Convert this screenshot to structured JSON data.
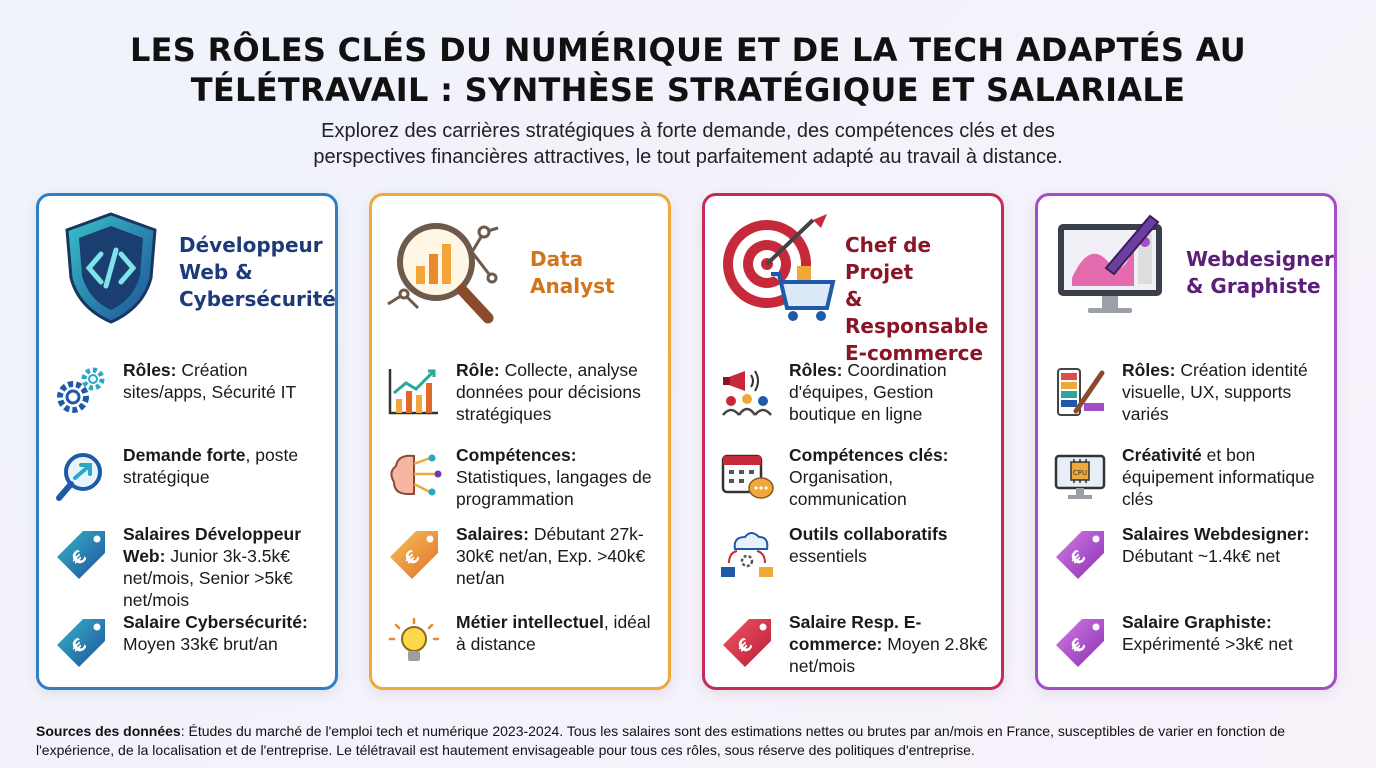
{
  "header": {
    "title_line1": "LES RÔLES CLÉS DU NUMÉRIQUE ET DE LA TECH ADAPTÉS AU",
    "title_line2": "TÉLÉTRAVAIL : SYNTHÈSE STRATÉGIQUE ET SALARIALE",
    "subtitle_line1": "Explorez des carrières stratégiques à forte demande, des compétences clés et des",
    "subtitle_line2": "perspectives financières attractives, le tout parfaitement adapté au travail à distance."
  },
  "colors": {
    "card1": "#2d7fc8",
    "card2": "#f0a83a",
    "card3": "#c62a55",
    "card4": "#a34dc9",
    "title1": "#1e3a78",
    "title2": "#d0751c",
    "title3": "#8a1526",
    "title4": "#5b1f7a"
  },
  "cards": [
    {
      "title": [
        "Développeur",
        "Web &",
        "Cybersécurité"
      ],
      "head_icon": "shield-code-icon",
      "items": [
        {
          "icon": "gears-icon",
          "bold": "Rôles:",
          "rest": " Création sites/apps, Sécurité IT"
        },
        {
          "icon": "magnifier-growth-icon",
          "bold": "Demande forte",
          "rest": ", poste stratégique"
        },
        {
          "icon": "euro-tag-icon",
          "bold": "Salaires Développeur Web:",
          "rest": " Junior 3k-3.5k€ net/mois, Senior >5k€ net/mois"
        },
        {
          "icon": "euro-tag-icon",
          "bold": "Salaire Cybersécurité:",
          "rest": " Moyen 33k€ brut/an"
        }
      ]
    },
    {
      "title": [
        "Data",
        "Analyst"
      ],
      "head_icon": "magnifier-chart-icon",
      "items": [
        {
          "icon": "bar-chart-icon",
          "bold": "Rôle:",
          "rest": " Collecte, analyse données pour décisions stratégiques"
        },
        {
          "icon": "brain-circuit-icon",
          "bold": "Compétences:",
          "rest": " Statistiques, langages de programmation"
        },
        {
          "icon": "euro-tag-icon",
          "bold": "Salaires:",
          "rest": " Débutant 27k-30k€ net/an, Exp. >40k€ net/an"
        },
        {
          "icon": "lightbulb-icon",
          "bold": "Métier intellectuel",
          "rest": ", idéal à distance"
        }
      ]
    },
    {
      "title": [
        "Chef de Projet",
        "& Responsable",
        "E-commerce"
      ],
      "head_icon": "target-cart-icon",
      "items": [
        {
          "icon": "megaphone-team-icon",
          "bold": "Rôles:",
          "rest": " Coordination d'équipes, Gestion boutique en ligne"
        },
        {
          "icon": "calendar-chat-icon",
          "bold": "Compétences clés:",
          "rest": " Organisation, communication"
        },
        {
          "icon": "cloud-collab-icon",
          "bold": "Outils collaboratifs",
          "rest": " essentiels"
        },
        {
          "icon": "euro-tag-icon",
          "bold": "Salaire Resp. E-commerce:",
          "rest": " Moyen 2.8k€ net/mois"
        }
      ]
    },
    {
      "title": [
        "Webdesigner",
        "& Graphiste"
      ],
      "head_icon": "monitor-pen-icon",
      "items": [
        {
          "icon": "palette-brush-icon",
          "bold": "Rôles:",
          "rest": " Création identité visuelle, UX, supports variés"
        },
        {
          "icon": "monitor-cpu-icon",
          "bold": "Créativité",
          "rest": " et bon équipement informatique clés"
        },
        {
          "icon": "euro-tag-icon",
          "bold": "Salaires Webdesigner:",
          "rest": " Débutant ~1.4k€ net"
        },
        {
          "icon": "euro-tag-icon",
          "bold": "Salaire Graphiste:",
          "rest": " Expérimenté >3k€ net"
        }
      ]
    }
  ],
  "footer": {
    "bold": "Sources des données",
    "rest": ": Études du marché de l'emploi tech et numérique 2023-2024. Tous les salaires sont des estimations nettes ou brutes par an/mois en France, susceptibles de varier en fonction de l'expérience, de la localisation et de l'entreprise. Le télétravail est hautement envisageable pour tous ces rôles, sous réserve des politiques d'entreprise."
  }
}
